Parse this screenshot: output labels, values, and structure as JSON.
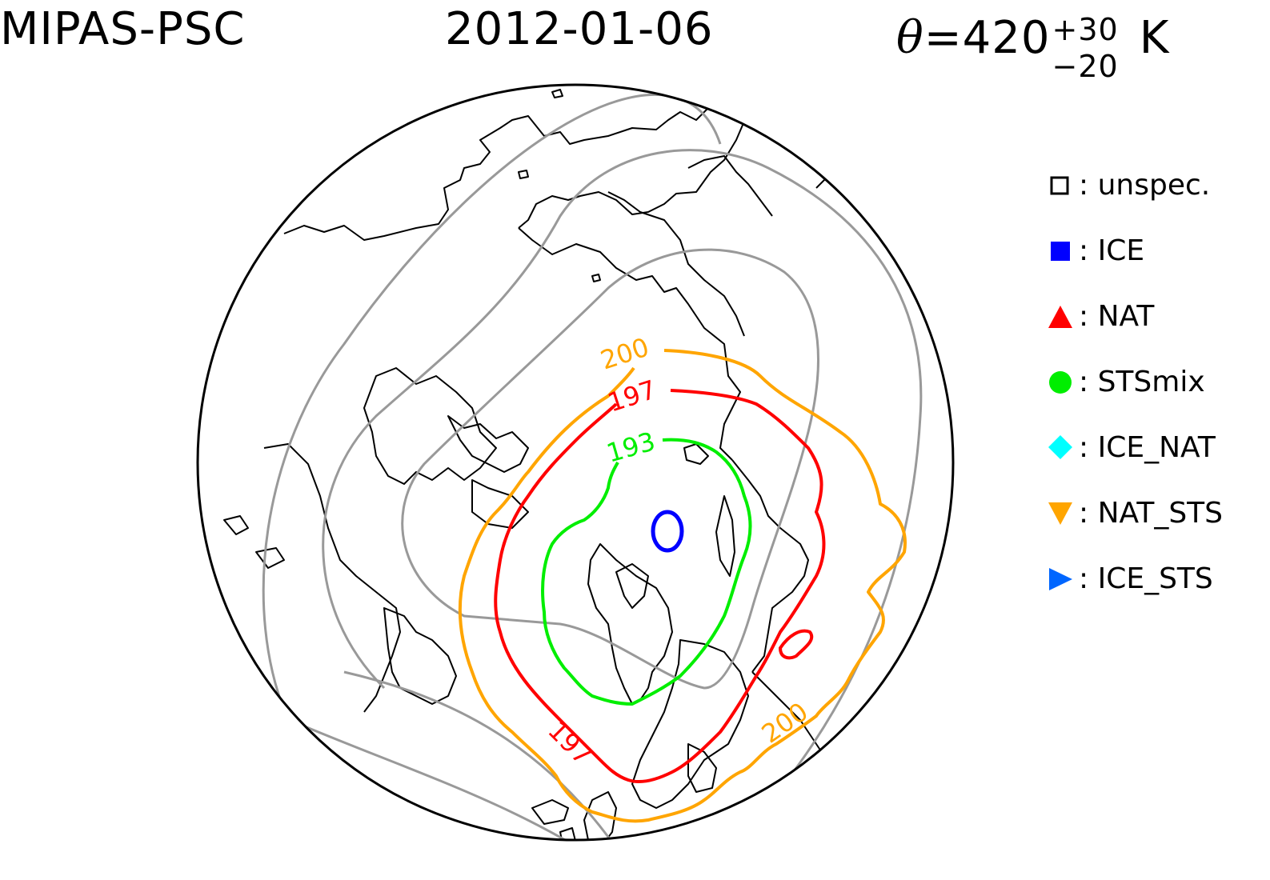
{
  "header": {
    "instrument": "MIPAS-PSC",
    "date": "2012-01-06",
    "theta_symbol": "θ",
    "theta_value": "=420",
    "theta_plus": "+30",
    "theta_minus": "−20",
    "unit": "K"
  },
  "map": {
    "projection": "north-polar-stereographic",
    "contour_labels": {
      "orange_top": "200",
      "red_top": "197",
      "green_top": "193",
      "red_bottom": "197",
      "orange_bottom": "200"
    },
    "colors": {
      "frame": "#000000",
      "coast": "#000000",
      "grey_contour": "#999999",
      "contour_200": "#ffa500",
      "contour_197": "#ff0000",
      "contour_193": "#00ee00",
      "ice_contour": "#0000ff"
    }
  },
  "legend": {
    "items": [
      {
        "label": ": unspec.",
        "marker": "open-square",
        "color": "#000000"
      },
      {
        "label": ": ICE",
        "marker": "filled-square",
        "color": "#0000ff"
      },
      {
        "label": ": NAT",
        "marker": "triangle-up",
        "color": "#ff0000"
      },
      {
        "label": ": STSmix",
        "marker": "circle",
        "color": "#00ee00"
      },
      {
        "label": ": ICE_NAT",
        "marker": "diamond",
        "color": "#00ffff"
      },
      {
        "label": ": NAT_STS",
        "marker": "triangle-down",
        "color": "#ffa500"
      },
      {
        "label": ": ICE_STS",
        "marker": "triangle-right",
        "color": "#0066ff"
      }
    ]
  }
}
